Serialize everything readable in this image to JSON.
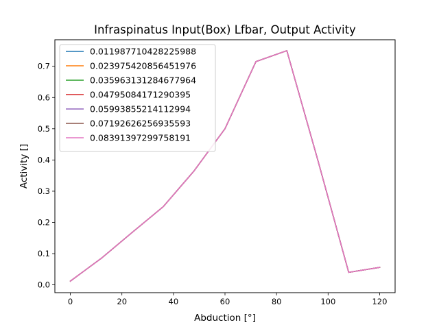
{
  "chart_data": {
    "type": "line",
    "title": "Infraspinatus Input(Box) Lfbar, Output Activity",
    "xlabel": "Abduction [°]",
    "ylabel": "Activity []",
    "xlim": [
      -6,
      126
    ],
    "ylim": [
      -0.025,
      0.785
    ],
    "xticks": [
      0,
      20,
      40,
      60,
      80,
      100,
      120
    ],
    "yticks": [
      0.0,
      0.1,
      0.2,
      0.3,
      0.4,
      0.5,
      0.6,
      0.7
    ],
    "ytick_labels": [
      "0.0",
      "0.1",
      "0.2",
      "0.3",
      "0.4",
      "0.5",
      "0.6",
      "0.7"
    ],
    "grid": false,
    "legend_position": "top-left",
    "x": [
      0,
      12,
      24,
      36,
      48,
      60,
      72,
      84,
      96,
      108,
      120
    ],
    "series": [
      {
        "name": "0.011987710428225988",
        "color": "#1f77b4",
        "values": [
          0.012,
          0.085,
          0.168,
          0.25,
          0.365,
          0.5,
          0.715,
          0.75,
          0.4,
          0.04,
          0.056
        ]
      },
      {
        "name": "0.023975420856451976",
        "color": "#ff7f0e",
        "values": [
          0.012,
          0.085,
          0.168,
          0.25,
          0.365,
          0.5,
          0.715,
          0.75,
          0.4,
          0.04,
          0.056
        ]
      },
      {
        "name": "0.035963131284677964",
        "color": "#2ca02c",
        "values": [
          0.012,
          0.085,
          0.168,
          0.25,
          0.365,
          0.5,
          0.715,
          0.75,
          0.4,
          0.04,
          0.056
        ]
      },
      {
        "name": "0.04795084171290395",
        "color": "#d62728",
        "values": [
          0.012,
          0.085,
          0.168,
          0.25,
          0.365,
          0.5,
          0.715,
          0.75,
          0.4,
          0.04,
          0.056
        ]
      },
      {
        "name": "0.05993855214112994",
        "color": "#9467bd",
        "values": [
          0.012,
          0.085,
          0.168,
          0.25,
          0.365,
          0.5,
          0.715,
          0.75,
          0.4,
          0.04,
          0.056
        ]
      },
      {
        "name": "0.07192626256935593",
        "color": "#8c564b",
        "values": [
          0.012,
          0.085,
          0.168,
          0.25,
          0.365,
          0.5,
          0.715,
          0.75,
          0.4,
          0.04,
          0.056
        ]
      },
      {
        "name": "0.08391397299758191",
        "color": "#e377c2",
        "values": [
          0.012,
          0.085,
          0.168,
          0.25,
          0.365,
          0.5,
          0.715,
          0.75,
          0.4,
          0.04,
          0.056
        ]
      }
    ]
  }
}
